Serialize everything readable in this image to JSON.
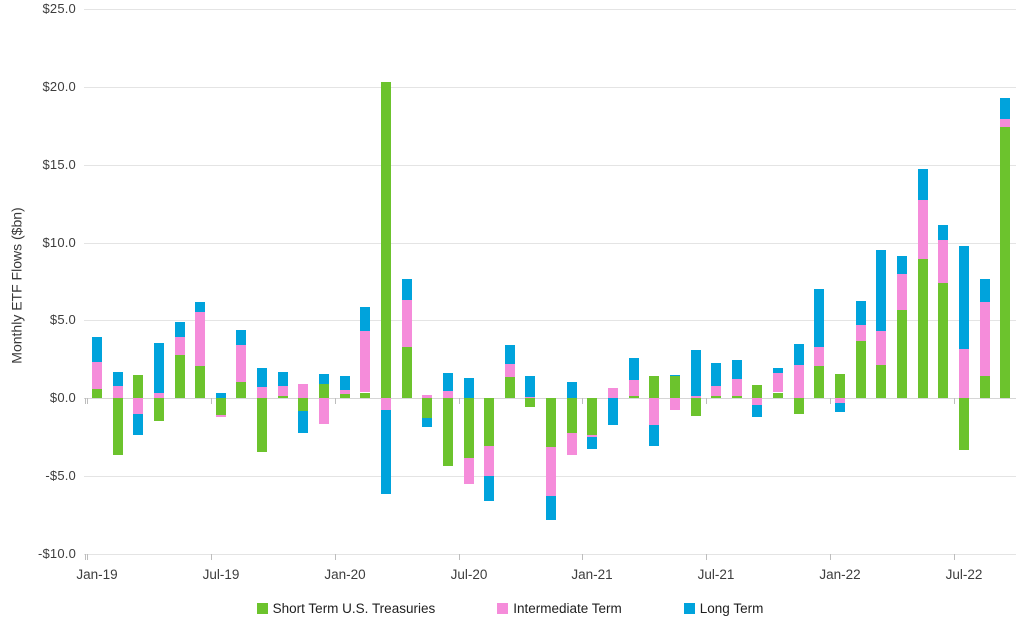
{
  "chart_data": {
    "type": "bar",
    "variant": "stacked-column",
    "title": "",
    "ylabel": "Monthly ETF Flows ($bn)",
    "xlabel": "",
    "ylim": [
      -10,
      25
    ],
    "grid": "horizontal",
    "legend_position": "bottom-center",
    "y_ticks": [
      {
        "value": 25,
        "label": "$25.0"
      },
      {
        "value": 20,
        "label": "$20.0"
      },
      {
        "value": 15,
        "label": "$15.0"
      },
      {
        "value": 10,
        "label": "$10.0"
      },
      {
        "value": 5,
        "label": "$5.0"
      },
      {
        "value": 0,
        "label": "$0.0"
      },
      {
        "value": -5,
        "label": "-$5.0"
      },
      {
        "value": -10,
        "label": "-$10.0"
      }
    ],
    "categories": [
      "Jan-19",
      "Feb-19",
      "Mar-19",
      "Apr-19",
      "May-19",
      "Jun-19",
      "Jul-19",
      "Aug-19",
      "Sep-19",
      "Oct-19",
      "Nov-19",
      "Dec-19",
      "Jan-20",
      "Feb-20",
      "Mar-20",
      "Apr-20",
      "May-20",
      "Jun-20",
      "Jul-20",
      "Aug-20",
      "Sep-20",
      "Oct-20",
      "Nov-20",
      "Dec-20",
      "Jan-21",
      "Feb-21",
      "Mar-21",
      "Apr-21",
      "May-21",
      "Jun-21",
      "Jul-21",
      "Aug-21",
      "Sep-21",
      "Oct-21",
      "Nov-21",
      "Dec-21",
      "Jan-22",
      "Feb-22",
      "Mar-22",
      "Apr-22",
      "May-22",
      "Jun-22",
      "Jul-22",
      "Aug-22",
      "Sep-22"
    ],
    "shown_x_labels": [
      "Jan-19",
      "Jul-19",
      "Jan-20",
      "Jul-20",
      "Jan-21",
      "Jul-21",
      "Jan-22",
      "Jul-22"
    ],
    "series": [
      {
        "name": "Short Term U.S. Treasuries",
        "color": "#6CC32D",
        "values": [
          0.6,
          -3.65,
          1.5,
          -1.45,
          2.75,
          2.05,
          -1.1,
          1.05,
          -3.5,
          0.15,
          -0.85,
          0.9,
          0.25,
          0.35,
          20.3,
          3.3,
          -1.3,
          -4.4,
          -3.85,
          -3.1,
          1.35,
          -0.6,
          -3.15,
          -2.25,
          -2.35,
          0,
          0.1,
          1.45,
          1.4,
          -1.15,
          0.1,
          0.1,
          0.85,
          0.35,
          -1.0,
          2.05,
          1.55,
          3.65,
          2.1,
          5.65,
          8.95,
          7.4,
          -3.35,
          1.4,
          17.45
        ]
      },
      {
        "name": "Intermediate Term",
        "color": "#F58CDA",
        "values": [
          1.7,
          0.75,
          -1.0,
          0.3,
          1.2,
          3.5,
          -0.15,
          2.35,
          0.7,
          0.65,
          0.9,
          -1.65,
          0.3,
          3.95,
          -0.75,
          3.0,
          0.2,
          0.45,
          -1.65,
          -1.9,
          0.85,
          0.1,
          -3.15,
          -1.4,
          -0.15,
          0.65,
          1.05,
          -1.75,
          -0.75,
          0.1,
          0.7,
          1.15,
          -0.45,
          1.25,
          2.15,
          1.25,
          -0.35,
          1.05,
          2.2,
          2.35,
          3.8,
          2.75,
          3.15,
          4.8,
          0.5
        ]
      },
      {
        "name": "Long Term",
        "color": "#00A3DC",
        "values": [
          1.65,
          0.9,
          -1.4,
          3.25,
          0.95,
          0.65,
          0.35,
          1.0,
          1.25,
          0.9,
          -1.4,
          0.65,
          0.9,
          1.55,
          -5.45,
          1.35,
          -0.55,
          1.15,
          1.3,
          -1.6,
          1.2,
          1.35,
          -1.55,
          1.0,
          -0.8,
          -1.75,
          1.4,
          -1.35,
          0.1,
          3.0,
          1.45,
          1.2,
          -0.75,
          0.35,
          1.35,
          3.7,
          -0.55,
          1.55,
          5.25,
          1.15,
          2.0,
          1.0,
          6.65,
          1.45,
          1.35
        ]
      }
    ]
  }
}
